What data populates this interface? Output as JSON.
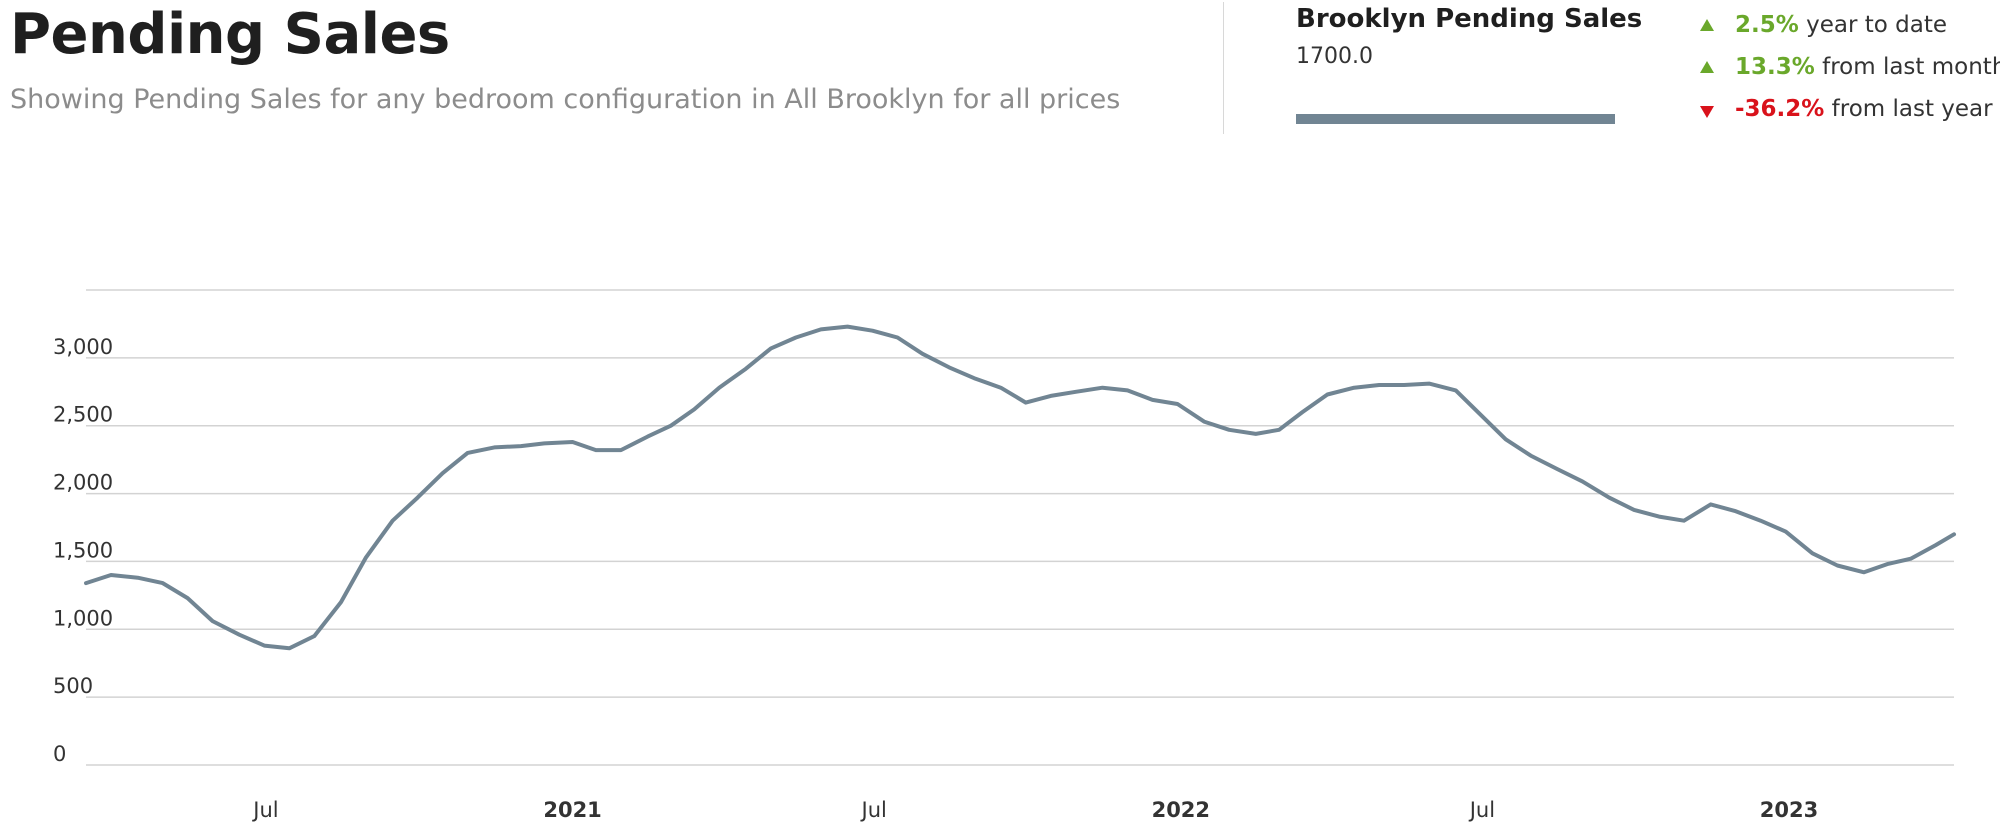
{
  "header": {
    "title": "Pending Sales",
    "subtitle": "Showing Pending Sales for any bedroom configuration in All Brooklyn for all prices"
  },
  "series_summary": {
    "name": "Brooklyn Pending Sales",
    "value": "1700.0",
    "color": "#718593"
  },
  "stats": [
    {
      "direction": "up",
      "value": "2.5%",
      "label": "year to date"
    },
    {
      "direction": "up",
      "value": "13.3%",
      "label": "from last month"
    },
    {
      "direction": "down",
      "value": "-36.2%",
      "label": "from last year"
    }
  ],
  "colors": {
    "up": "#6aa82b",
    "down": "#d9121b",
    "grid": "#d3d3d3",
    "line": "#718593"
  },
  "chart_data": {
    "type": "line",
    "title": "",
    "xlabel": "",
    "ylabel": "",
    "ylim": [
      0,
      3500
    ],
    "yticks": [
      0,
      500,
      1000,
      1500,
      2000,
      2500,
      3000
    ],
    "ytick_labels": [
      "0",
      "500",
      "1,000",
      "1,500",
      "2,000",
      "2,500",
      "3,000"
    ],
    "xlim": [
      "2020-03-15",
      "2023-04-10"
    ],
    "xticks": [
      {
        "date": "2020-07-01",
        "label": "Jul",
        "bold": false
      },
      {
        "date": "2021-01-01",
        "label": "2021",
        "bold": true
      },
      {
        "date": "2021-07-01",
        "label": "Jul",
        "bold": false
      },
      {
        "date": "2022-01-01",
        "label": "2022",
        "bold": true
      },
      {
        "date": "2022-07-01",
        "label": "Jul",
        "bold": false
      },
      {
        "date": "2023-01-01",
        "label": "2023",
        "bold": true
      }
    ],
    "grid": true,
    "legend": "none",
    "series": [
      {
        "name": "Brooklyn Pending Sales",
        "points": [
          [
            "2020-03-15",
            1340
          ],
          [
            "2020-03-30",
            1400
          ],
          [
            "2020-04-15",
            1380
          ],
          [
            "2020-04-30",
            1340
          ],
          [
            "2020-05-15",
            1230
          ],
          [
            "2020-05-30",
            1060
          ],
          [
            "2020-06-15",
            960
          ],
          [
            "2020-06-30",
            880
          ],
          [
            "2020-07-15",
            860
          ],
          [
            "2020-07-30",
            950
          ],
          [
            "2020-08-15",
            1200
          ],
          [
            "2020-08-30",
            1530
          ],
          [
            "2020-09-15",
            1800
          ],
          [
            "2020-09-30",
            1970
          ],
          [
            "2020-10-15",
            2150
          ],
          [
            "2020-10-30",
            2300
          ],
          [
            "2020-11-15",
            2340
          ],
          [
            "2020-12-01",
            2350
          ],
          [
            "2020-12-15",
            2370
          ],
          [
            "2021-01-01",
            2380
          ],
          [
            "2021-01-15",
            2320
          ],
          [
            "2021-01-30",
            2320
          ],
          [
            "2021-02-15",
            2420
          ],
          [
            "2021-03-01",
            2500
          ],
          [
            "2021-03-15",
            2620
          ],
          [
            "2021-03-30",
            2780
          ],
          [
            "2021-04-15",
            2920
          ],
          [
            "2021-04-30",
            3070
          ],
          [
            "2021-05-15",
            3150
          ],
          [
            "2021-05-30",
            3210
          ],
          [
            "2021-06-15",
            3230
          ],
          [
            "2021-06-30",
            3200
          ],
          [
            "2021-07-15",
            3150
          ],
          [
            "2021-07-30",
            3030
          ],
          [
            "2021-08-15",
            2930
          ],
          [
            "2021-08-30",
            2850
          ],
          [
            "2021-09-15",
            2780
          ],
          [
            "2021-09-30",
            2670
          ],
          [
            "2021-10-15",
            2720
          ],
          [
            "2021-10-30",
            2750
          ],
          [
            "2021-11-15",
            2780
          ],
          [
            "2021-11-30",
            2760
          ],
          [
            "2021-12-15",
            2690
          ],
          [
            "2021-12-30",
            2660
          ],
          [
            "2022-01-15",
            2530
          ],
          [
            "2022-01-30",
            2470
          ],
          [
            "2022-02-15",
            2440
          ],
          [
            "2022-03-01",
            2470
          ],
          [
            "2022-03-15",
            2600
          ],
          [
            "2022-03-30",
            2730
          ],
          [
            "2022-04-15",
            2780
          ],
          [
            "2022-04-30",
            2800
          ],
          [
            "2022-05-15",
            2800
          ],
          [
            "2022-05-30",
            2810
          ],
          [
            "2022-06-15",
            2760
          ],
          [
            "2022-06-30",
            2580
          ],
          [
            "2022-07-15",
            2400
          ],
          [
            "2022-07-30",
            2280
          ],
          [
            "2022-08-15",
            2180
          ],
          [
            "2022-08-30",
            2090
          ],
          [
            "2022-09-15",
            1970
          ],
          [
            "2022-09-30",
            1880
          ],
          [
            "2022-10-15",
            1830
          ],
          [
            "2022-10-30",
            1800
          ],
          [
            "2022-11-15",
            1920
          ],
          [
            "2022-11-30",
            1870
          ],
          [
            "2022-12-15",
            1800
          ],
          [
            "2022-12-30",
            1720
          ],
          [
            "2023-01-15",
            1560
          ],
          [
            "2023-01-30",
            1470
          ],
          [
            "2023-02-15",
            1420
          ],
          [
            "2023-03-01",
            1480
          ],
          [
            "2023-03-15",
            1520
          ],
          [
            "2023-03-30",
            1620
          ],
          [
            "2023-04-10",
            1700
          ]
        ]
      }
    ]
  }
}
